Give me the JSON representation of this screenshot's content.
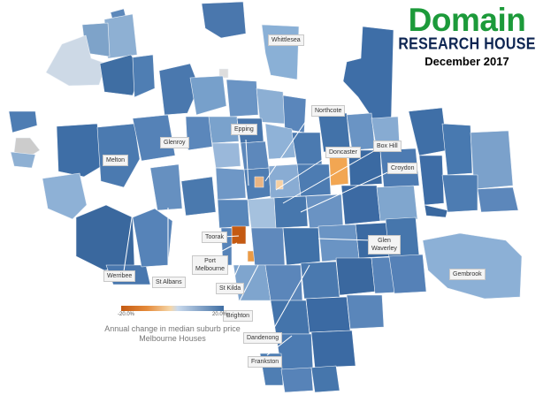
{
  "brand": {
    "domain": "Domain",
    "research_house": "RESEARCH HOUSE",
    "date": "December 2017",
    "colors": {
      "domain": "#1c9a3a",
      "research_house": "#0d2552",
      "date": "#000000"
    }
  },
  "legend": {
    "min_label": "-20.0%",
    "max_label": "20.0%",
    "title_line1": "Annual change in median suburb price",
    "title_line2": "Melbourne Houses",
    "colors": {
      "negative": "#c45a12",
      "mid": "#f5d6a8",
      "positive": "#3f6ea3"
    }
  },
  "suburbs": [
    {
      "name": "Whittlesea"
    },
    {
      "name": "Northcote"
    },
    {
      "name": "Epping"
    },
    {
      "name": "Glenroy"
    },
    {
      "name": "Melton"
    },
    {
      "name": "Doncaster"
    },
    {
      "name": "Box Hill"
    },
    {
      "name": "Croydon"
    },
    {
      "name": "Toorak"
    },
    {
      "name": "Port",
      "name2": "Melbourne"
    },
    {
      "name": "St Albans"
    },
    {
      "name": "Werribee"
    },
    {
      "name": "St Kilda"
    },
    {
      "name": "Brighton"
    },
    {
      "name": "Glen",
      "name2": "Waverley"
    },
    {
      "name": "Gembrook"
    },
    {
      "name": "Dandenong"
    },
    {
      "name": "Frankston"
    }
  ]
}
